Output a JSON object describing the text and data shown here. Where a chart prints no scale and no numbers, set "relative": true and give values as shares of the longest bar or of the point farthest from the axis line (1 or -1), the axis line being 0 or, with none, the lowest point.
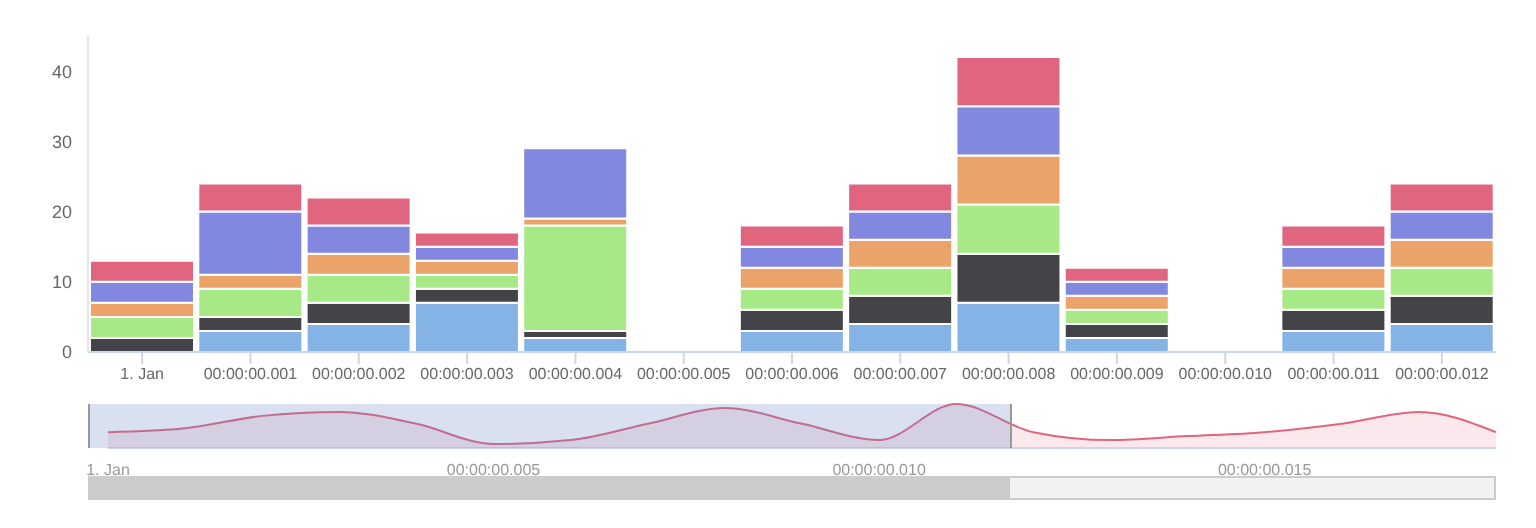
{
  "chart_data": [
    {
      "type": "bar",
      "stacked": true,
      "categories": [
        "1. Jan",
        "00:00:00.001",
        "00:00:00.002",
        "00:00:00.003",
        "00:00:00.004",
        "00:00:00.005",
        "00:00:00.006",
        "00:00:00.007",
        "00:00:00.008",
        "00:00:00.009",
        "00:00:00.010",
        "00:00:00.011",
        "00:00:00.012"
      ],
      "series": [
        {
          "color": "#85b3e6",
          "values": [
            0,
            3,
            4,
            7,
            2,
            null,
            3,
            4,
            7,
            2,
            null,
            3,
            4
          ]
        },
        {
          "color": "#434348",
          "values": [
            2,
            2,
            3,
            2,
            1,
            null,
            3,
            4,
            7,
            2,
            null,
            3,
            4
          ]
        },
        {
          "color": "#a6e986",
          "values": [
            3,
            4,
            4,
            2,
            15,
            null,
            3,
            4,
            7,
            2,
            null,
            3,
            4
          ]
        },
        {
          "color": "#eba36a",
          "values": [
            2,
            2,
            3,
            2,
            1,
            null,
            3,
            4,
            7,
            2,
            null,
            3,
            4
          ]
        },
        {
          "color": "#8287e0",
          "values": [
            3,
            9,
            4,
            2,
            10,
            null,
            3,
            4,
            7,
            2,
            null,
            3,
            4
          ]
        },
        {
          "color": "#e0667f",
          "values": [
            3,
            4,
            4,
            2,
            0,
            null,
            3,
            4,
            7,
            2,
            null,
            3,
            4
          ]
        }
      ],
      "ylim": [
        0,
        45
      ],
      "yticks": [
        0,
        10,
        20,
        30,
        40
      ],
      "grid": false,
      "legend": false
    },
    {
      "type": "area",
      "relative": true,
      "categories": [
        "1. Jan",
        null,
        null,
        null,
        null,
        "00:00:00.005",
        null,
        null,
        null,
        null,
        "00:00:00.010",
        null,
        null,
        null,
        null,
        "00:00:00.015",
        null,
        null,
        null
      ],
      "series": [
        {
          "color": "#e0667f",
          "values": [
            0.36,
            0.45,
            0.73,
            0.82,
            0.55,
            0.09,
            0.18,
            0.55,
            0.91,
            0.55,
            0.18,
            1,
            0.36,
            0.18,
            0.27,
            0.36,
            0.55,
            0.82,
            0.36
          ]
        }
      ],
      "legend": false
    }
  ]
}
